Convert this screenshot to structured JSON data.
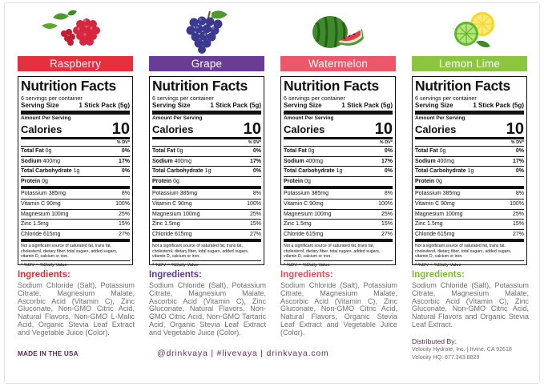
{
  "products": [
    {
      "name": "Raspberry",
      "color": "#e5303e",
      "ing_color": "#d8303a",
      "icon": "raspberry-icon",
      "nf": {
        "title": "Nutrition Facts",
        "servings": "6 servings per container",
        "serving_size_label": "Serving Size",
        "serving_size_value": "1 Stick Pack (5g)",
        "amount_per_serving": "Amount Per Serving",
        "calories_label": "Calories",
        "calories_value": "10",
        "dv_header": "% DV*",
        "rows": [
          {
            "label": "Total Fat",
            "amount": "0g",
            "dv": "0%"
          },
          {
            "label": "Sodium",
            "amount": "400mg",
            "dv": "17%"
          },
          {
            "label": "Total Carbohydrate",
            "amount": "1g",
            "dv": "0%"
          },
          {
            "label": "Protein",
            "amount": "0g",
            "dv": ""
          }
        ],
        "minerals": [
          {
            "label": "Potassium 385mg",
            "dv": "8%"
          },
          {
            "label": "Vitamin C 90mg",
            "dv": "100%"
          },
          {
            "label": "Magnesium 100mg",
            "dv": "25%"
          },
          {
            "label": "Zinc 1.5mg",
            "dv": "15%"
          },
          {
            "label": "Chloride 615mg",
            "dv": "27%"
          }
        ],
        "note": "Not a significant source of saturated fat, trans fat, cholesterol, dietary fiber, total sugars, added sugars, vitamin D, calcium or iron.",
        "footnote": "* %DV = %Daily Value"
      },
      "ingredients_title": "Ingredients:",
      "ingredients": "Sodium Chloride (Salt), Potassium Citrate, Magnesium Malate, Ascorbic Acid (Vitamin C), Zinc Gluconate, Non-GMO Citric Acid, Natural Flavors, Non-GMO L-Malic Acid, Organic Stevia Leaf Extract and Vegetable Juice (Color)."
    },
    {
      "name": "Grape",
      "color": "#6a3c96",
      "ing_color": "#5b3a8f",
      "icon": "grape-icon",
      "nf": {
        "title": "Nutrition Facts",
        "servings": "6 servings per container",
        "serving_size_label": "Serving Size",
        "serving_size_value": "1 Stick Pack (5g)",
        "amount_per_serving": "Amount Per Serving",
        "calories_label": "Calories",
        "calories_value": "10",
        "dv_header": "% DV*",
        "rows": [
          {
            "label": "Total Fat",
            "amount": "0g",
            "dv": "0%"
          },
          {
            "label": "Sodium",
            "amount": "400mg",
            "dv": "17%"
          },
          {
            "label": "Total Carbohydrate",
            "amount": "1g",
            "dv": "0%"
          },
          {
            "label": "Protein",
            "amount": "0g",
            "dv": ""
          }
        ],
        "minerals": [
          {
            "label": "Potassium 385mg",
            "dv": "8%"
          },
          {
            "label": "Vitamin C 90mg",
            "dv": "100%"
          },
          {
            "label": "Magnesium 100mg",
            "dv": "25%"
          },
          {
            "label": "Zinc 1.5mg",
            "dv": "15%"
          },
          {
            "label": "Chloride 615mg",
            "dv": "27%"
          }
        ],
        "note": "Not a significant source of saturated fat, trans fat, cholesterol, dietary fiber, total sugars, added sugars, vitamin D, calcium or iron.",
        "footnote": "* %DV = %Daily Value"
      },
      "ingredients_title": "Ingredients:",
      "ingredients": "Sodium Chloride (Salt), Potassium Citrate, Magnesium Malate, Ascorbic Acid (Vitamin C), Zinc Gluconate, Natural Flavors, Non-GMO Citric Acid, Non-GMO Tartaric Acid, Organic Stevia Leaf Extract and Vegetable Juice (Color)."
    },
    {
      "name": "Watermelon",
      "color": "#ec5869",
      "ing_color": "#e4505e",
      "icon": "watermelon-icon",
      "nf": {
        "title": "Nutrition Facts",
        "servings": "6 servings per container",
        "serving_size_label": "Serving Size",
        "serving_size_value": "1 Stick Pack (5g)",
        "amount_per_serving": "Amount Per Serving",
        "calories_label": "Calories",
        "calories_value": "10",
        "dv_header": "% DV*",
        "rows": [
          {
            "label": "Total Fat",
            "amount": "0g",
            "dv": "0%"
          },
          {
            "label": "Sodium",
            "amount": "400mg",
            "dv": "17%"
          },
          {
            "label": "Total Carbohydrate",
            "amount": "1g",
            "dv": "0%"
          },
          {
            "label": "Protein",
            "amount": "0g",
            "dv": ""
          }
        ],
        "minerals": [
          {
            "label": "Potassium 385mg",
            "dv": "8%"
          },
          {
            "label": "Vitamin C 90mg",
            "dv": "100%"
          },
          {
            "label": "Magnesium 100mg",
            "dv": "25%"
          },
          {
            "label": "Zinc 1.5mg",
            "dv": "15%"
          },
          {
            "label": "Chloride 615mg",
            "dv": "27%"
          }
        ],
        "note": "Not a significant source of saturated fat, trans fat, cholesterol, dietary fiber, total sugars, added sugars, vitamin D, calcium or iron.",
        "footnote": "* %DV = %Daily Value"
      },
      "ingredients_title": "Ingredients:",
      "ingredients": "Sodium Chloride (Salt), Potassium Citrate, Magnesium Malate, Ascorbic Acid (Vitamin C), Zinc Gluconate, Non-GMO Citric Acid, Natural Flavors, Organic Stevia Leaf Extract and Vegetable Juice (Color)."
    },
    {
      "name": "Lemon Lime",
      "color": "#8cc63f",
      "ing_color": "#7dbb35",
      "icon": "lemon-lime-icon",
      "nf": {
        "title": "Nutrition Facts",
        "servings": "6 servings per container",
        "serving_size_label": "Serving Size",
        "serving_size_value": "1 Stick Pack (5g)",
        "amount_per_serving": "Amount Per Serving",
        "calories_label": "Calories",
        "calories_value": "10",
        "dv_header": "% DV*",
        "rows": [
          {
            "label": "Total Fat",
            "amount": "0g",
            "dv": "0%"
          },
          {
            "label": "Sodium",
            "amount": "400mg",
            "dv": "17%"
          },
          {
            "label": "Total Carbohydrate",
            "amount": "1g",
            "dv": "0%"
          },
          {
            "label": "Protein",
            "amount": "0g",
            "dv": ""
          }
        ],
        "minerals": [
          {
            "label": "Potassium 385mg",
            "dv": "8%"
          },
          {
            "label": "Vitamin C 90mg",
            "dv": "100%"
          },
          {
            "label": "Magnesium 100mg",
            "dv": "25%"
          },
          {
            "label": "Zinc 1.5mg",
            "dv": "15%"
          },
          {
            "label": "Chloride 615mg",
            "dv": "27%"
          }
        ],
        "note": "Not a significant source of saturated fat, trans fat, cholesterol, dietary fiber, total sugars, added sugars, vitamin D, calcium or iron.",
        "footnote": "* %DV = %Daily Value"
      },
      "ingredients_title": "Ingredients:",
      "ingredients": "Sodium Chloride (Salt), Potassium Citrate, Magnesium Malate, Ascorbic Acid (Vitamin C), Zinc Gluconate, Non-GMO Citric Acid, Natural Flavors and Organic Stevia Leaf Extract."
    }
  ],
  "footer": {
    "made_in": "MADE IN THE USA",
    "social": "@drinkvaya | #livevaya | drinkvaya.com",
    "distributed_by": "Distributed By:",
    "company": "Velocity Hydrate, Inc. | Irvine, CA 92618",
    "hq": "Velocity HQ: 877.343.8829"
  }
}
